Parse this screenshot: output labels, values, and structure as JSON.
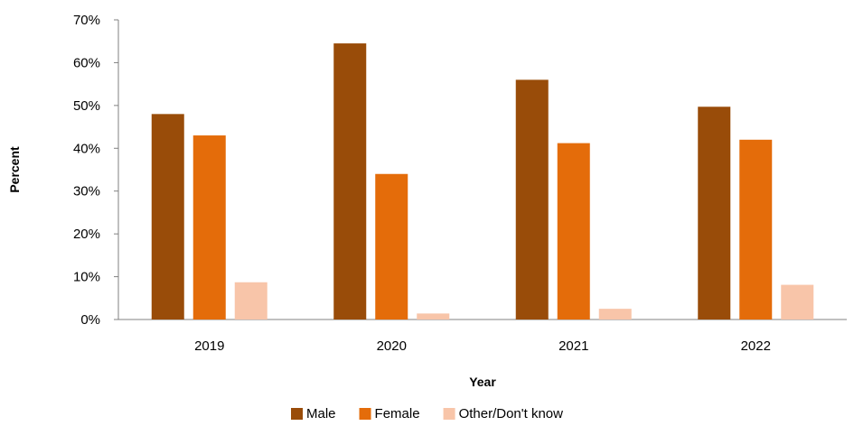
{
  "chart_data": {
    "type": "bar",
    "categories": [
      "2019",
      "2020",
      "2021",
      "2022"
    ],
    "series": [
      {
        "name": "Male",
        "color": "#994C09",
        "values": [
          48,
          64.5,
          56,
          49.7
        ]
      },
      {
        "name": "Female",
        "color": "#E46C0A",
        "values": [
          43,
          34,
          41.2,
          42
        ]
      },
      {
        "name": "Other/Don't know",
        "color": "#F8C5A9",
        "values": [
          8.7,
          1.4,
          2.5,
          8.1
        ]
      }
    ],
    "xlabel": "Year",
    "ylabel": "Percent",
    "ylim": [
      0,
      70
    ],
    "yticks": [
      0,
      10,
      20,
      30,
      40,
      50,
      60,
      70
    ],
    "ytick_labels": [
      "0%",
      "10%",
      "20%",
      "30%",
      "40%",
      "50%",
      "60%",
      "70%"
    ],
    "grid": false,
    "legend_position": "bottom"
  }
}
